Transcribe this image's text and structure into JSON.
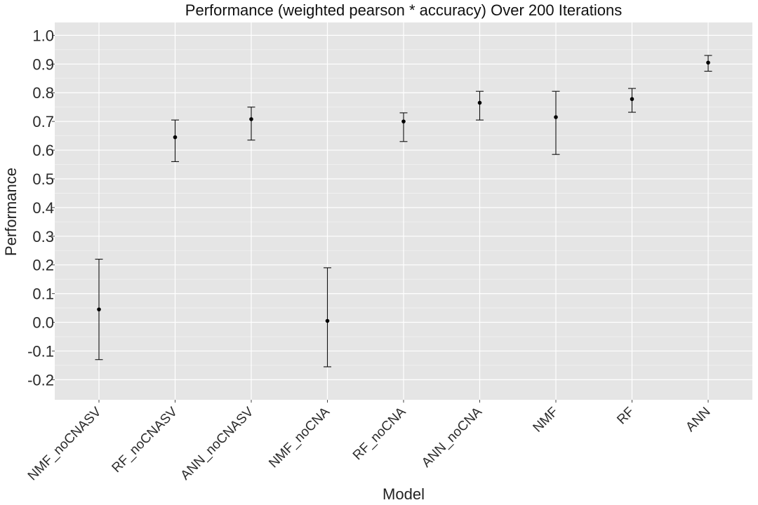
{
  "chart_data": {
    "type": "errorbar",
    "title": "Performance (weighted pearson * accuracy) Over 200 Iterations",
    "xlabel": "Model",
    "ylabel": "Performance",
    "categories": [
      "NMF_noCNASV",
      "RF_noCNASV",
      "ANN_noCNASV",
      "NMF_noCNA",
      "RF_noCNA",
      "ANN_noCNA",
      "NMF",
      "RF",
      "ANN"
    ],
    "mean": [
      0.045,
      0.645,
      0.708,
      0.005,
      0.7,
      0.765,
      0.715,
      0.778,
      0.905
    ],
    "lower": [
      -0.13,
      0.56,
      0.635,
      -0.155,
      0.63,
      0.705,
      0.585,
      0.732,
      0.875
    ],
    "upper": [
      0.22,
      0.705,
      0.75,
      0.19,
      0.73,
      0.805,
      0.805,
      0.815,
      0.93
    ],
    "yticks": [
      "1.0",
      "0.9",
      "0.8",
      "0.7",
      "0.6",
      "0.5",
      "0.4",
      "0.3",
      "0.2",
      "0.1",
      "0.0",
      "-0.1",
      "-0.2"
    ],
    "yticks_values": [
      1.0,
      0.9,
      0.8,
      0.7,
      0.6,
      0.5,
      0.4,
      0.3,
      0.2,
      0.1,
      0.0,
      -0.1,
      -0.2
    ],
    "ylim": [
      -0.27,
      1.045
    ],
    "grid": true,
    "background": "#e5e5e5",
    "grid_color": "#ffffff"
  }
}
